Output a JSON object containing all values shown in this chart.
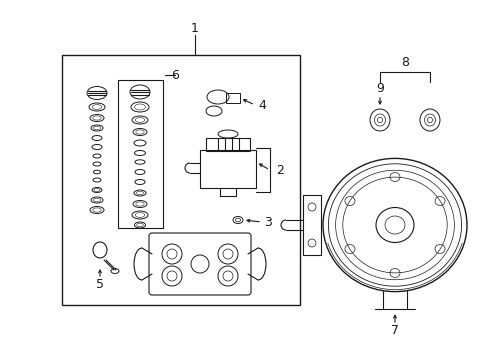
{
  "bg_color": "#ffffff",
  "line_color": "#1a1a1a",
  "figure_width": 4.89,
  "figure_height": 3.6,
  "dpi": 100
}
